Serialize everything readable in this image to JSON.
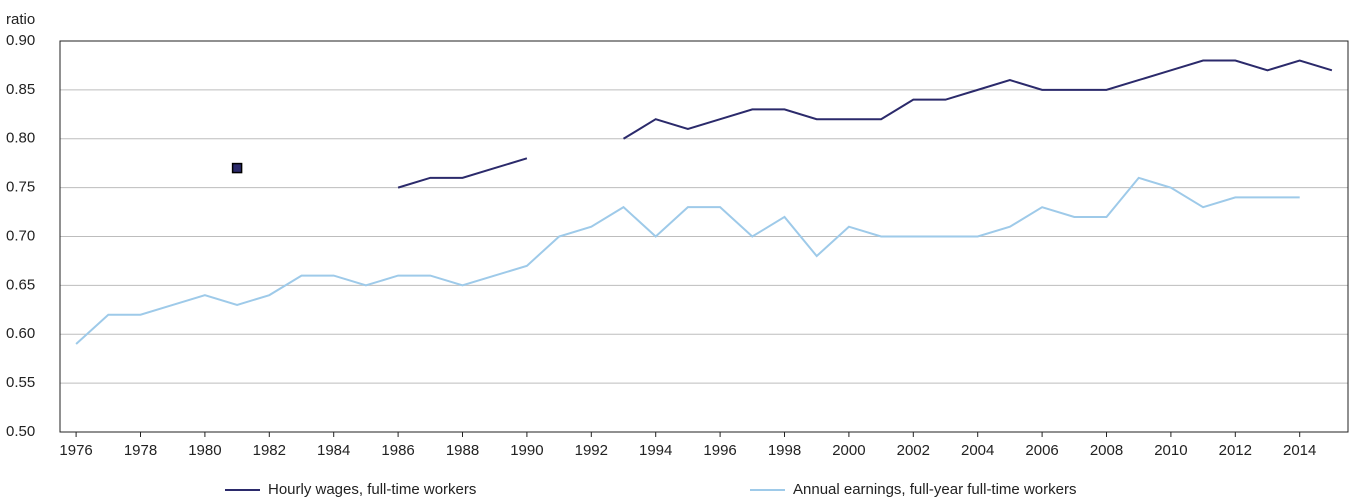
{
  "chart_data": {
    "type": "line",
    "y_label": "ratio",
    "x": [
      1976,
      1977,
      1978,
      1979,
      1980,
      1981,
      1982,
      1983,
      1984,
      1985,
      1986,
      1987,
      1988,
      1989,
      1990,
      1991,
      1992,
      1993,
      1994,
      1995,
      1996,
      1997,
      1998,
      1999,
      2000,
      2001,
      2002,
      2003,
      2004,
      2005,
      2006,
      2007,
      2008,
      2009,
      2010,
      2011,
      2012,
      2013,
      2014,
      2015
    ],
    "series": [
      {
        "name": "Hourly wages, full-time workers",
        "color": "#2b2a6b",
        "values": [
          null,
          null,
          null,
          null,
          null,
          0.77,
          null,
          null,
          null,
          null,
          0.75,
          0.76,
          0.76,
          0.77,
          0.78,
          null,
          null,
          0.8,
          0.82,
          0.81,
          0.82,
          0.83,
          0.83,
          0.82,
          0.82,
          0.82,
          0.84,
          0.84,
          0.85,
          0.86,
          0.85,
          0.85,
          0.85,
          0.86,
          0.87,
          0.88,
          0.88,
          0.87,
          0.88,
          0.87
        ]
      },
      {
        "name": "Annual earnings, full-year full-time workers",
        "color": "#9ecae9",
        "values": [
          0.59,
          0.62,
          0.62,
          0.63,
          0.64,
          0.63,
          0.64,
          0.66,
          0.66,
          0.65,
          0.66,
          0.66,
          0.65,
          0.66,
          0.67,
          0.7,
          0.71,
          0.73,
          0.7,
          0.73,
          0.73,
          0.7,
          0.72,
          0.68,
          0.71,
          0.7,
          0.7,
          0.7,
          0.7,
          0.71,
          0.73,
          0.72,
          0.72,
          0.76,
          0.75,
          0.73,
          0.74,
          0.74,
          0.74,
          null
        ]
      }
    ],
    "xlim": [
      1975.5,
      2015.5
    ],
    "xticks": [
      1976,
      1978,
      1980,
      1982,
      1984,
      1986,
      1988,
      1990,
      1992,
      1994,
      1996,
      1998,
      2000,
      2002,
      2004,
      2006,
      2008,
      2010,
      2012,
      2014
    ],
    "ylim": [
      0.5,
      0.9
    ],
    "yticks": [
      {
        "value": 0.5,
        "label": "0.50"
      },
      0.55,
      {
        "value": 0.6,
        "label": "0.60"
      },
      0.65,
      {
        "value": 0.7,
        "label": "0.70"
      },
      0.75,
      {
        "value": 0.8,
        "label": "0.80"
      },
      0.85,
      {
        "value": 0.9,
        "label": "0.90"
      }
    ],
    "grid": true
  }
}
